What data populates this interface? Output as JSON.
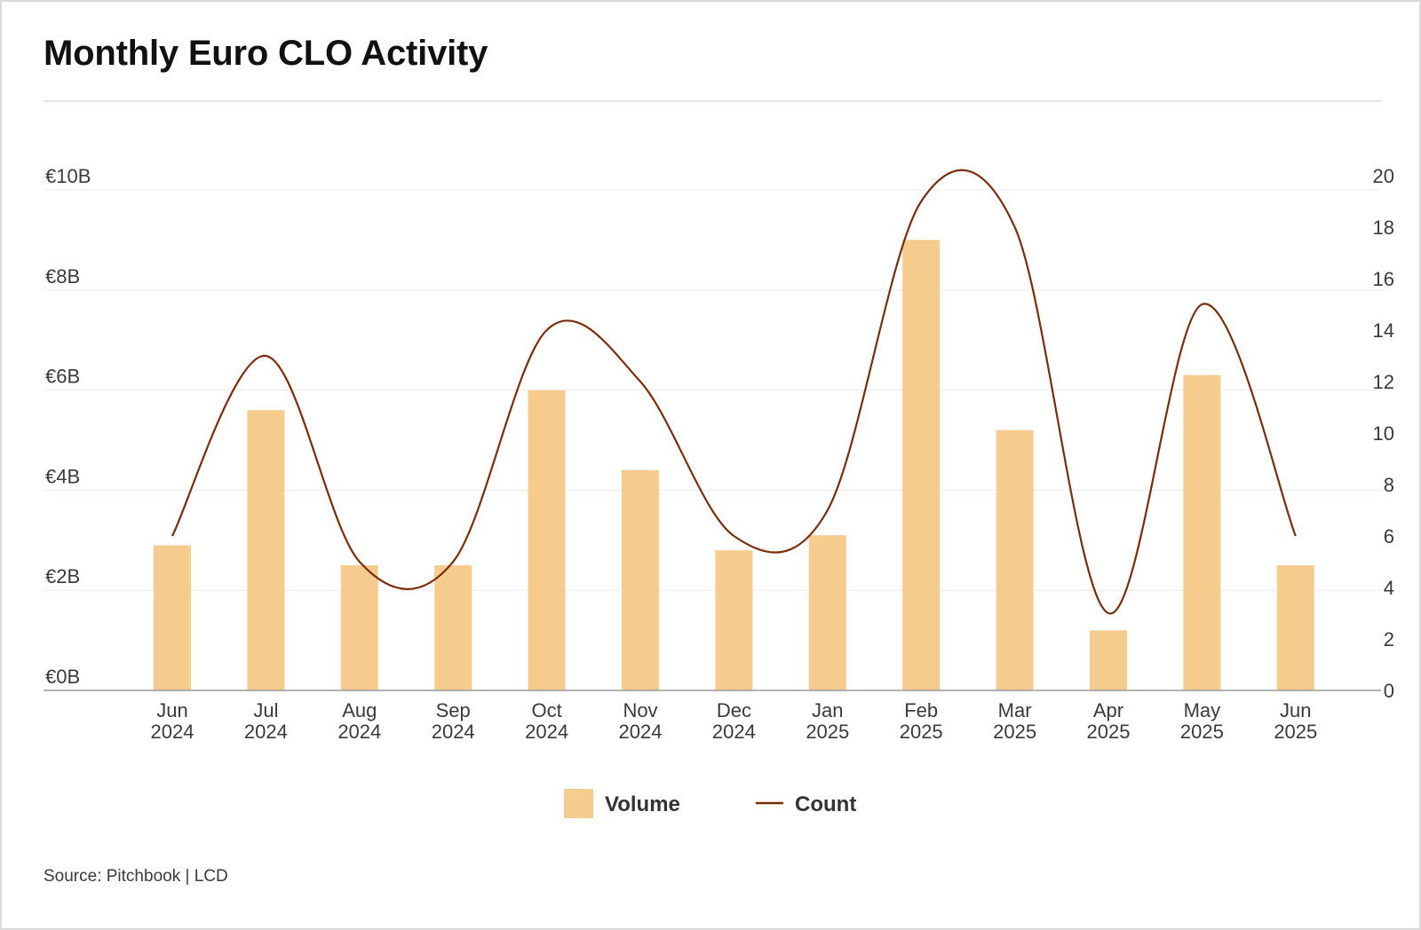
{
  "title": "Monthly Euro CLO Activity",
  "source": "Source: Pitchbook | LCD",
  "colors": {
    "volume": "#f5cb8e",
    "count": "#7b2d0a",
    "grid": "#ececec",
    "axis": "#9a9a9a"
  },
  "chart_data": {
    "type": "bar",
    "categories": [
      [
        "Jun",
        "2024"
      ],
      [
        "Jul",
        "2024"
      ],
      [
        "Aug",
        "2024"
      ],
      [
        "Sep",
        "2024"
      ],
      [
        "Oct",
        "2024"
      ],
      [
        "Nov",
        "2024"
      ],
      [
        "Dec",
        "2024"
      ],
      [
        "Jan",
        "2025"
      ],
      [
        "Feb",
        "2025"
      ],
      [
        "Mar",
        "2025"
      ],
      [
        "Apr",
        "2025"
      ],
      [
        "May",
        "2025"
      ],
      [
        "Jun",
        "2025"
      ]
    ],
    "series": [
      {
        "name": "Volume",
        "type": "bar",
        "axis": "left",
        "values": [
          2.9,
          5.6,
          2.5,
          2.5,
          6.0,
          4.4,
          2.8,
          3.1,
          9.0,
          5.2,
          1.2,
          6.3,
          2.5
        ]
      },
      {
        "name": "Count",
        "type": "line",
        "axis": "right",
        "smooth": true,
        "values": [
          6,
          13,
          5,
          5,
          14,
          12,
          6,
          7,
          19,
          18,
          3,
          15,
          6
        ]
      }
    ],
    "y_left": {
      "min": 0,
      "max": 10,
      "ticks": [
        0,
        2,
        4,
        6,
        8,
        10
      ],
      "tick_labels": [
        "€0B",
        "€2B",
        "€4B",
        "€6B",
        "€8B",
        "€10B"
      ]
    },
    "y_right": {
      "min": 0,
      "max": 20,
      "ticks": [
        0,
        2,
        4,
        6,
        8,
        10,
        12,
        14,
        16,
        18,
        20
      ],
      "tick_labels": [
        "0",
        "2",
        "4",
        "6",
        "8",
        "10",
        "12",
        "14",
        "16",
        "18",
        "20"
      ]
    },
    "grid": true,
    "legend": {
      "position": "bottom-center",
      "entries": [
        "Volume",
        "Count"
      ]
    }
  }
}
